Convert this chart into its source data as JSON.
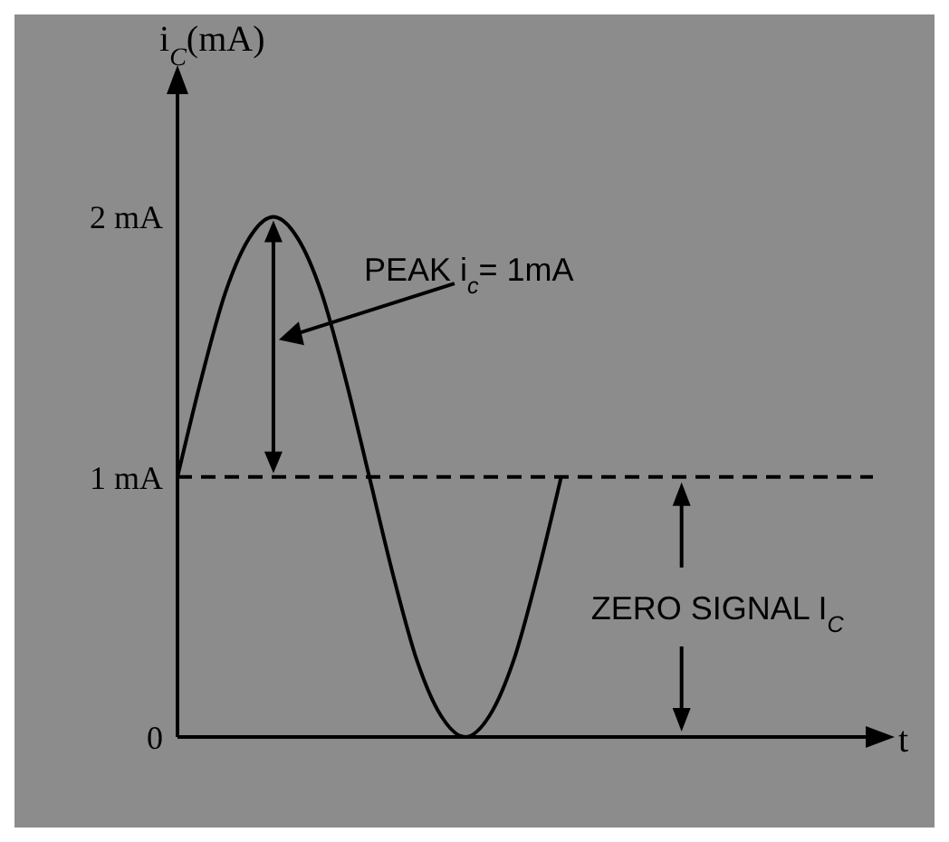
{
  "chart_data": {
    "type": "line",
    "xlabel": "t",
    "ylabel": "i$_{C}$(mA)",
    "categories": [
      null,
      null,
      null,
      null,
      null,
      null,
      null,
      null,
      null,
      null,
      null,
      null,
      null,
      null,
      null,
      null,
      null,
      null,
      null,
      null,
      null,
      null,
      null,
      null,
      null,
      null,
      null,
      null,
      null,
      null
    ],
    "series": [
      {
        "color": "#000000",
        "values": [
          1,
          1.38,
          1.71,
          1.92,
          2,
          1.92,
          1.71,
          1.38,
          1,
          0.62,
          0.29,
          0.08,
          0,
          0.08,
          0.29,
          0.62,
          1,
          null,
          null,
          null,
          null,
          null,
          null,
          null,
          null,
          null,
          null,
          null,
          null,
          null
        ]
      }
    ],
    "ylim": [
      0,
      2.5
    ],
    "yticks": [
      {
        "value": 0,
        "label": "0"
      },
      {
        "value": 1,
        "label": "1 mA"
      },
      {
        "value": 2,
        "label": "2 mA"
      }
    ],
    "ref_lines": [
      {
        "axis": "y",
        "value": 1,
        "color": "#000000",
        "line_style": "dashed"
      }
    ],
    "annotations": [
      "PEAK i$_{c}$= 1mA",
      "ZERO SIGNAL I$_{C}$"
    ],
    "marker": "none"
  }
}
